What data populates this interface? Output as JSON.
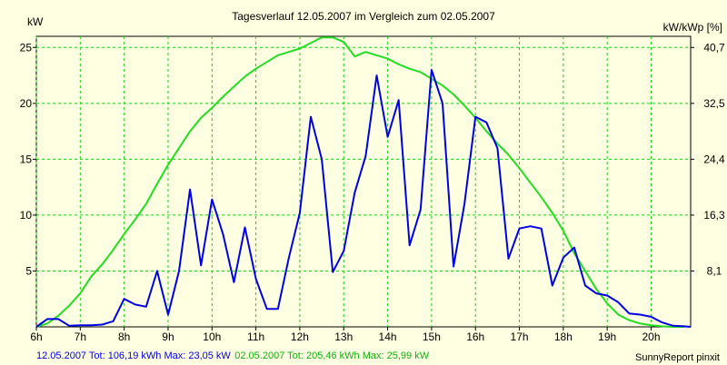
{
  "chart_data": {
    "type": "line",
    "title": "Tagesverlauf 12.05.2007 im Vergleich zum 02.05.2007",
    "ylabel_left": "kW",
    "ylabel_right": "kW/kWp [%]",
    "x_ticks": [
      "6h",
      "7h",
      "8h",
      "9h",
      "10h",
      "11h",
      "12h",
      "13h",
      "14h",
      "15h",
      "16h",
      "17h",
      "18h",
      "19h",
      "20h"
    ],
    "y_left_ticks": [
      "5",
      "10",
      "15",
      "20",
      "25"
    ],
    "y_right_ticks": [
      "8,1",
      "16,3",
      "24,4",
      "32,5",
      "40,7"
    ],
    "xlim": [
      6.0,
      20.9
    ],
    "ylim_left": [
      0,
      26
    ],
    "grid": true,
    "series": [
      {
        "name": "12.05.2007",
        "color": "#0000e6",
        "x": [
          6.0,
          6.25,
          6.5,
          6.75,
          7.0,
          7.25,
          7.5,
          7.75,
          8.0,
          8.25,
          8.5,
          8.75,
          9.0,
          9.25,
          9.5,
          9.75,
          10.0,
          10.25,
          10.5,
          10.75,
          11.0,
          11.25,
          11.5,
          11.75,
          12.0,
          12.25,
          12.5,
          12.75,
          13.0,
          13.25,
          13.5,
          13.75,
          14.0,
          14.25,
          14.5,
          14.75,
          15.0,
          15.25,
          15.5,
          15.75,
          16.0,
          16.25,
          16.5,
          16.75,
          17.0,
          17.25,
          17.5,
          17.75,
          18.0,
          18.25,
          18.5,
          18.75,
          19.0,
          19.25,
          19.5,
          19.75,
          20.0,
          20.25,
          20.5,
          20.75,
          20.9
        ],
        "values": [
          0.0,
          0.7,
          0.7,
          0.1,
          0.15,
          0.15,
          0.2,
          0.5,
          2.5,
          2.0,
          1.8,
          5.0,
          1.1,
          5.0,
          12.3,
          5.5,
          11.4,
          8.3,
          4.0,
          8.9,
          4.3,
          1.6,
          1.6,
          6.2,
          10.2,
          18.8,
          15.0,
          4.9,
          6.8,
          12.0,
          15.3,
          22.5,
          17.0,
          20.3,
          7.3,
          10.5,
          23.0,
          20.0,
          5.4,
          11.0,
          18.8,
          18.3,
          16.0,
          6.1,
          8.8,
          9.0,
          8.8,
          3.7,
          6.2,
          7.1,
          3.7,
          3.0,
          2.8,
          2.2,
          1.2,
          1.1,
          0.9,
          0.4,
          0.1,
          0.05,
          0.0
        ]
      },
      {
        "name": "02.05.2007",
        "color": "#22dd22",
        "x": [
          6.0,
          6.25,
          6.5,
          6.75,
          7.0,
          7.25,
          7.5,
          7.75,
          8.0,
          8.25,
          8.5,
          8.75,
          9.0,
          9.25,
          9.5,
          9.75,
          10.0,
          10.25,
          10.5,
          10.75,
          11.0,
          11.25,
          11.5,
          11.75,
          12.0,
          12.25,
          12.5,
          12.75,
          13.0,
          13.25,
          13.5,
          13.75,
          14.0,
          14.25,
          14.5,
          14.75,
          15.0,
          15.25,
          15.5,
          15.75,
          16.0,
          16.25,
          16.5,
          16.75,
          17.0,
          17.25,
          17.5,
          17.75,
          18.0,
          18.25,
          18.5,
          18.75,
          19.0,
          19.25,
          19.5,
          19.75,
          20.0,
          20.25,
          20.5,
          20.75
        ],
        "values": [
          0.0,
          0.3,
          1.0,
          1.9,
          3.0,
          4.5,
          5.6,
          6.9,
          8.3,
          9.6,
          11.0,
          12.8,
          14.5,
          16.0,
          17.5,
          18.7,
          19.6,
          20.6,
          21.5,
          22.4,
          23.1,
          23.7,
          24.3,
          24.6,
          24.9,
          25.4,
          25.9,
          25.9,
          25.5,
          24.2,
          24.6,
          24.3,
          24.0,
          23.5,
          23.1,
          22.8,
          22.2,
          21.6,
          20.8,
          19.8,
          18.7,
          17.5,
          16.4,
          15.4,
          14.2,
          12.9,
          11.6,
          10.2,
          8.6,
          6.6,
          5.0,
          3.4,
          2.1,
          1.1,
          0.6,
          0.3,
          0.15,
          0.05,
          0.0,
          0.0
        ]
      }
    ]
  },
  "footer": {
    "s1_stats": "12.05.2007 Tot: 106,19 kWh Max: 23,05 kW",
    "s2_stats": "02.05.2007 Tot: 205,46 kWh Max: 25,99 kW",
    "credit": "SunnyReport pinxit"
  },
  "colors": {
    "background": "#ffffe1",
    "grid": "#22cc22"
  }
}
